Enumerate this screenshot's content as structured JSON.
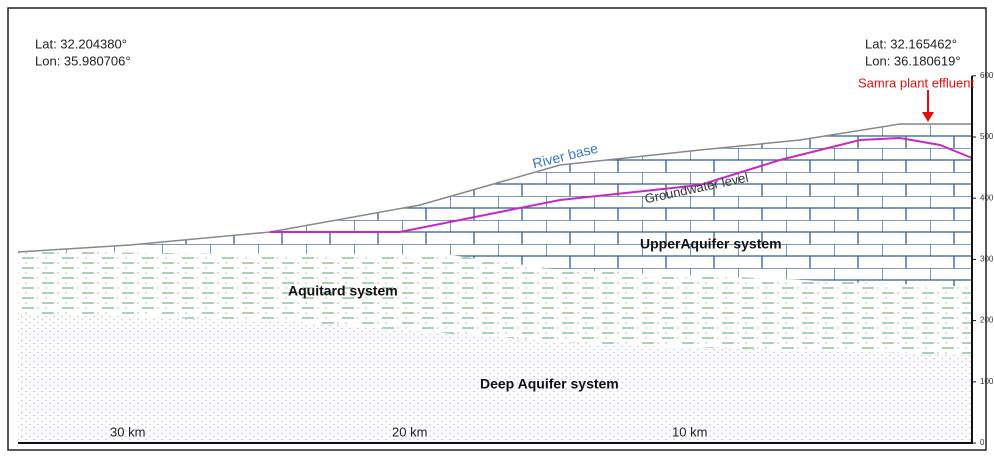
{
  "header": {
    "left": {
      "lat": "Lat:  32.204380°",
      "lon": "Lon:  35.980706°"
    },
    "right": {
      "lat": "Lat:  32.165462°",
      "lon": "Lon:  36.180619°"
    }
  },
  "labels": {
    "river_base": "River base",
    "groundwater": "Groundwater level",
    "upper": "UpperAquifer system",
    "aquitard": "Aquitard system",
    "deep": "Deep Aquifer system",
    "samra": "Samra plant effluent"
  },
  "distances": [
    "30 km",
    "20 km",
    "10 km"
  ],
  "axis_ticks": [
    "0",
    "100",
    "200",
    "300",
    "400",
    "500",
    "600"
  ]
}
